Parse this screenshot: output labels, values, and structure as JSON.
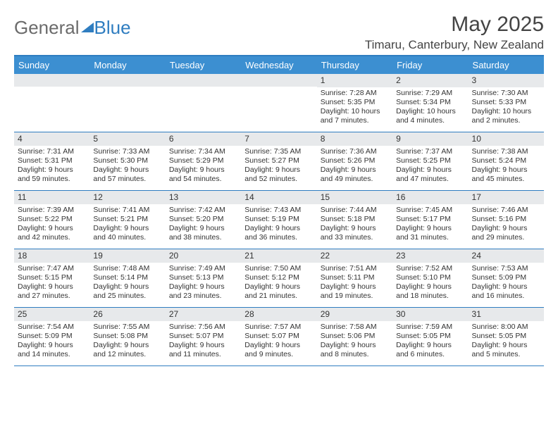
{
  "logo": {
    "part1": "General",
    "part2": "Blue"
  },
  "title": "May 2025",
  "location": "Timaru, Canterbury, New Zealand",
  "colors": {
    "brand": "#2f7dc0",
    "header_bg": "#3c8fd1",
    "daynum_bg": "#e7e9eb",
    "text": "#333333"
  },
  "day_headers": [
    "Sunday",
    "Monday",
    "Tuesday",
    "Wednesday",
    "Thursday",
    "Friday",
    "Saturday"
  ],
  "weeks": [
    [
      {
        "empty": true
      },
      {
        "empty": true
      },
      {
        "empty": true
      },
      {
        "empty": true
      },
      {
        "n": "1",
        "sr": "Sunrise: 7:28 AM",
        "ss": "Sunset: 5:35 PM",
        "dl1": "Daylight: 10 hours",
        "dl2": "and 7 minutes."
      },
      {
        "n": "2",
        "sr": "Sunrise: 7:29 AM",
        "ss": "Sunset: 5:34 PM",
        "dl1": "Daylight: 10 hours",
        "dl2": "and 4 minutes."
      },
      {
        "n": "3",
        "sr": "Sunrise: 7:30 AM",
        "ss": "Sunset: 5:33 PM",
        "dl1": "Daylight: 10 hours",
        "dl2": "and 2 minutes."
      }
    ],
    [
      {
        "n": "4",
        "sr": "Sunrise: 7:31 AM",
        "ss": "Sunset: 5:31 PM",
        "dl1": "Daylight: 9 hours",
        "dl2": "and 59 minutes."
      },
      {
        "n": "5",
        "sr": "Sunrise: 7:33 AM",
        "ss": "Sunset: 5:30 PM",
        "dl1": "Daylight: 9 hours",
        "dl2": "and 57 minutes."
      },
      {
        "n": "6",
        "sr": "Sunrise: 7:34 AM",
        "ss": "Sunset: 5:29 PM",
        "dl1": "Daylight: 9 hours",
        "dl2": "and 54 minutes."
      },
      {
        "n": "7",
        "sr": "Sunrise: 7:35 AM",
        "ss": "Sunset: 5:27 PM",
        "dl1": "Daylight: 9 hours",
        "dl2": "and 52 minutes."
      },
      {
        "n": "8",
        "sr": "Sunrise: 7:36 AM",
        "ss": "Sunset: 5:26 PM",
        "dl1": "Daylight: 9 hours",
        "dl2": "and 49 minutes."
      },
      {
        "n": "9",
        "sr": "Sunrise: 7:37 AM",
        "ss": "Sunset: 5:25 PM",
        "dl1": "Daylight: 9 hours",
        "dl2": "and 47 minutes."
      },
      {
        "n": "10",
        "sr": "Sunrise: 7:38 AM",
        "ss": "Sunset: 5:24 PM",
        "dl1": "Daylight: 9 hours",
        "dl2": "and 45 minutes."
      }
    ],
    [
      {
        "n": "11",
        "sr": "Sunrise: 7:39 AM",
        "ss": "Sunset: 5:22 PM",
        "dl1": "Daylight: 9 hours",
        "dl2": "and 42 minutes."
      },
      {
        "n": "12",
        "sr": "Sunrise: 7:41 AM",
        "ss": "Sunset: 5:21 PM",
        "dl1": "Daylight: 9 hours",
        "dl2": "and 40 minutes."
      },
      {
        "n": "13",
        "sr": "Sunrise: 7:42 AM",
        "ss": "Sunset: 5:20 PM",
        "dl1": "Daylight: 9 hours",
        "dl2": "and 38 minutes."
      },
      {
        "n": "14",
        "sr": "Sunrise: 7:43 AM",
        "ss": "Sunset: 5:19 PM",
        "dl1": "Daylight: 9 hours",
        "dl2": "and 36 minutes."
      },
      {
        "n": "15",
        "sr": "Sunrise: 7:44 AM",
        "ss": "Sunset: 5:18 PM",
        "dl1": "Daylight: 9 hours",
        "dl2": "and 33 minutes."
      },
      {
        "n": "16",
        "sr": "Sunrise: 7:45 AM",
        "ss": "Sunset: 5:17 PM",
        "dl1": "Daylight: 9 hours",
        "dl2": "and 31 minutes."
      },
      {
        "n": "17",
        "sr": "Sunrise: 7:46 AM",
        "ss": "Sunset: 5:16 PM",
        "dl1": "Daylight: 9 hours",
        "dl2": "and 29 minutes."
      }
    ],
    [
      {
        "n": "18",
        "sr": "Sunrise: 7:47 AM",
        "ss": "Sunset: 5:15 PM",
        "dl1": "Daylight: 9 hours",
        "dl2": "and 27 minutes."
      },
      {
        "n": "19",
        "sr": "Sunrise: 7:48 AM",
        "ss": "Sunset: 5:14 PM",
        "dl1": "Daylight: 9 hours",
        "dl2": "and 25 minutes."
      },
      {
        "n": "20",
        "sr": "Sunrise: 7:49 AM",
        "ss": "Sunset: 5:13 PM",
        "dl1": "Daylight: 9 hours",
        "dl2": "and 23 minutes."
      },
      {
        "n": "21",
        "sr": "Sunrise: 7:50 AM",
        "ss": "Sunset: 5:12 PM",
        "dl1": "Daylight: 9 hours",
        "dl2": "and 21 minutes."
      },
      {
        "n": "22",
        "sr": "Sunrise: 7:51 AM",
        "ss": "Sunset: 5:11 PM",
        "dl1": "Daylight: 9 hours",
        "dl2": "and 19 minutes."
      },
      {
        "n": "23",
        "sr": "Sunrise: 7:52 AM",
        "ss": "Sunset: 5:10 PM",
        "dl1": "Daylight: 9 hours",
        "dl2": "and 18 minutes."
      },
      {
        "n": "24",
        "sr": "Sunrise: 7:53 AM",
        "ss": "Sunset: 5:09 PM",
        "dl1": "Daylight: 9 hours",
        "dl2": "and 16 minutes."
      }
    ],
    [
      {
        "n": "25",
        "sr": "Sunrise: 7:54 AM",
        "ss": "Sunset: 5:09 PM",
        "dl1": "Daylight: 9 hours",
        "dl2": "and 14 minutes."
      },
      {
        "n": "26",
        "sr": "Sunrise: 7:55 AM",
        "ss": "Sunset: 5:08 PM",
        "dl1": "Daylight: 9 hours",
        "dl2": "and 12 minutes."
      },
      {
        "n": "27",
        "sr": "Sunrise: 7:56 AM",
        "ss": "Sunset: 5:07 PM",
        "dl1": "Daylight: 9 hours",
        "dl2": "and 11 minutes."
      },
      {
        "n": "28",
        "sr": "Sunrise: 7:57 AM",
        "ss": "Sunset: 5:07 PM",
        "dl1": "Daylight: 9 hours",
        "dl2": "and 9 minutes."
      },
      {
        "n": "29",
        "sr": "Sunrise: 7:58 AM",
        "ss": "Sunset: 5:06 PM",
        "dl1": "Daylight: 9 hours",
        "dl2": "and 8 minutes."
      },
      {
        "n": "30",
        "sr": "Sunrise: 7:59 AM",
        "ss": "Sunset: 5:05 PM",
        "dl1": "Daylight: 9 hours",
        "dl2": "and 6 minutes."
      },
      {
        "n": "31",
        "sr": "Sunrise: 8:00 AM",
        "ss": "Sunset: 5:05 PM",
        "dl1": "Daylight: 9 hours",
        "dl2": "and 5 minutes."
      }
    ]
  ]
}
